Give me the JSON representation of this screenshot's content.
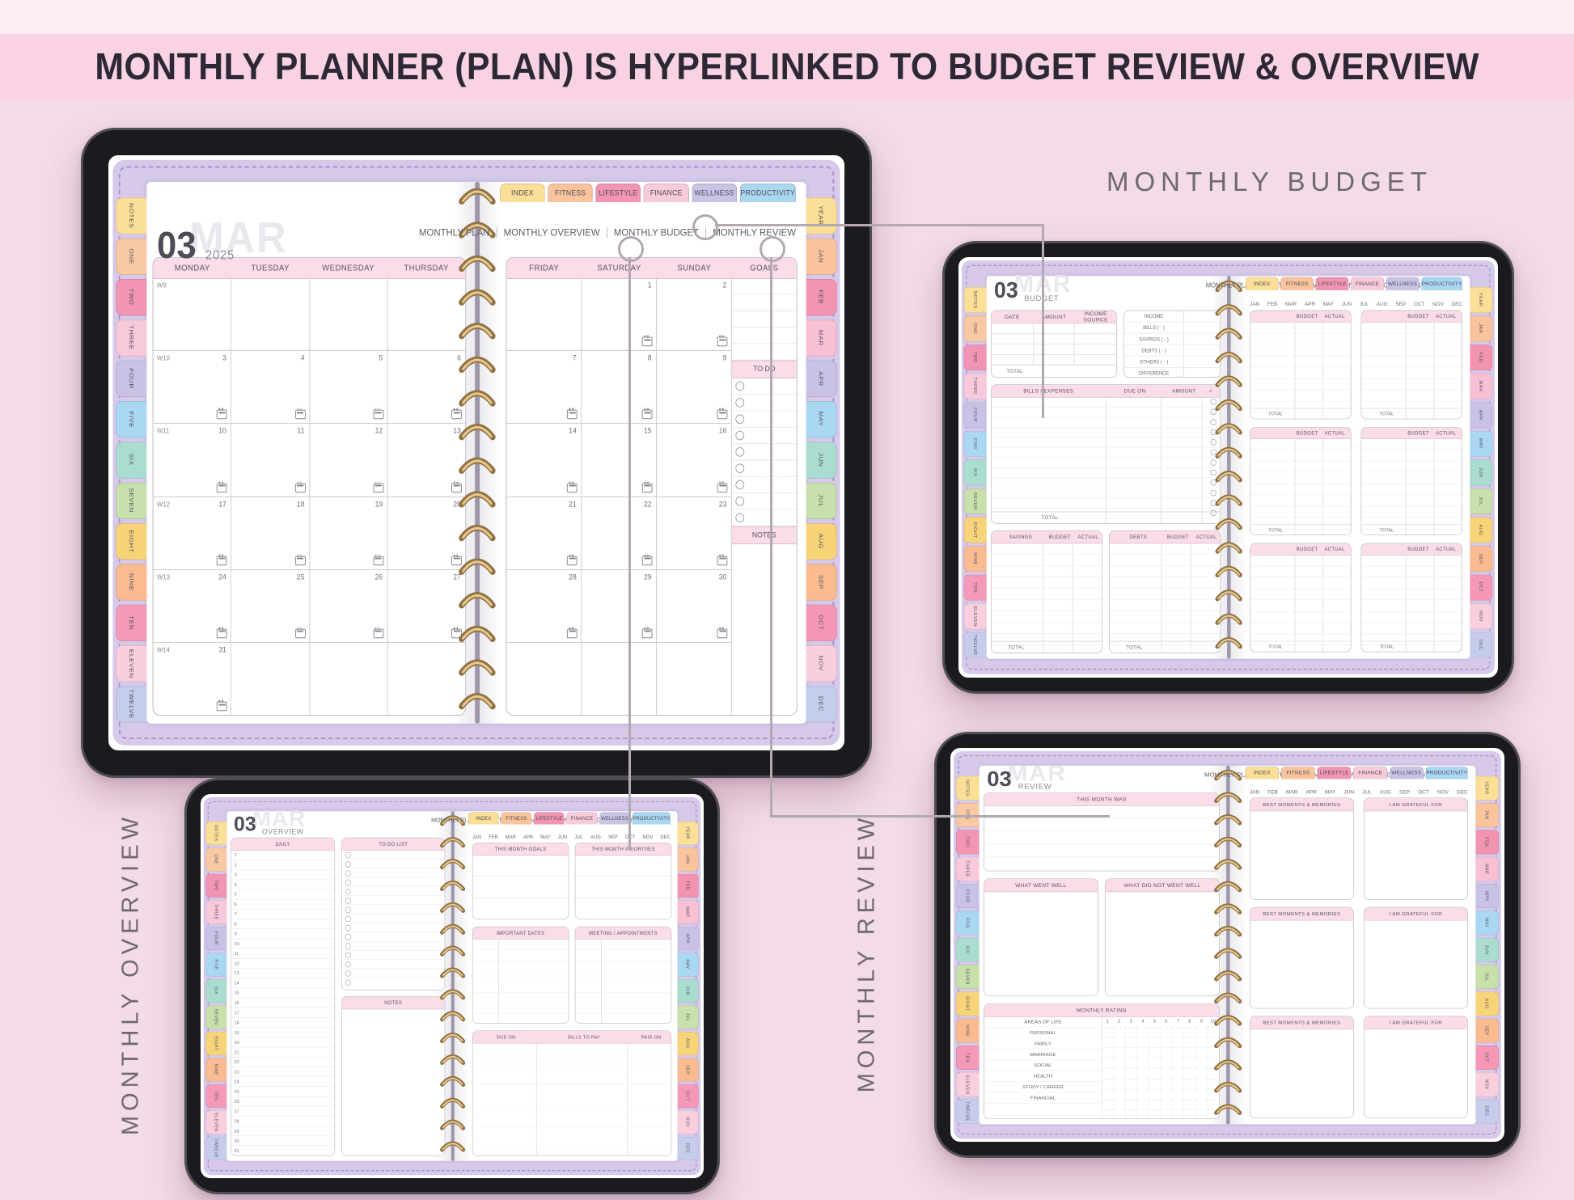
{
  "header": {
    "banner": "MONTHLY PLANNER (PLAN) IS HYPERLINKED TO BUDGET REVIEW & OVERVIEW"
  },
  "annotations": {
    "budget_label": "MONTHLY BUDGET",
    "overview_label": "MONTHLY OVERVIEW",
    "review_label": "MONTHLY REVIEW"
  },
  "chrome": {
    "top_tabs": [
      {
        "label": "INDEX",
        "color": "#fbdf96"
      },
      {
        "label": "FITNESS",
        "color": "#f9c49b"
      },
      {
        "label": "LIFESTYLE",
        "color": "#f294b4"
      },
      {
        "label": "FINANCE",
        "color": "#f8cbdb"
      },
      {
        "label": "WELLNESS",
        "color": "#c9c4e6"
      },
      {
        "label": "PRODUCTIVITY",
        "color": "#a9d7f2"
      }
    ],
    "side_tabs": [
      {
        "label": "NOTES",
        "color": "#fbdf96"
      },
      {
        "label": "ONE",
        "color": "#f9c9a4"
      },
      {
        "label": "TWO",
        "color": "#f294b4"
      },
      {
        "label": "THREE",
        "color": "#f8c9da"
      },
      {
        "label": "FOUR",
        "color": "#c9c2e5"
      },
      {
        "label": "FIVE",
        "color": "#aad7f2"
      },
      {
        "label": "SIX",
        "color": "#abdcd0"
      },
      {
        "label": "SEVEN",
        "color": "#c8e0ab"
      },
      {
        "label": "EIGHT",
        "color": "#f8d478"
      },
      {
        "label": "NINE",
        "color": "#f9bb8f"
      },
      {
        "label": "TEN",
        "color": "#f49ab8"
      },
      {
        "label": "ELEVEN",
        "color": "#f9cfdd"
      },
      {
        "label": "TWELVE",
        "color": "#c5cdea"
      }
    ],
    "month_tabs": [
      {
        "label": "YEAR",
        "color": "#fbdf96"
      },
      {
        "label": "JAN",
        "color": "#f9c49b"
      },
      {
        "label": "FEB",
        "color": "#f294b0"
      },
      {
        "label": "MAR",
        "color": "#f8c0d4"
      },
      {
        "label": "APR",
        "color": "#c9c2e5"
      },
      {
        "label": "MAY",
        "color": "#aad7f2"
      },
      {
        "label": "JUN",
        "color": "#abdcd0"
      },
      {
        "label": "JUL",
        "color": "#c8e0ab"
      },
      {
        "label": "AUG",
        "color": "#f8d478"
      },
      {
        "label": "SEP",
        "color": "#f9bb8f"
      },
      {
        "label": "OCT",
        "color": "#f498b6"
      },
      {
        "label": "NOV",
        "color": "#f9cfdd"
      },
      {
        "label": "DEC",
        "color": "#c5cdea"
      }
    ],
    "nav": [
      "MONTHLY PLAN",
      "MONTHLY OVERVIEW",
      "MONTHLY BUDGET",
      "MONTHLY REVIEW"
    ],
    "months": [
      "JAN",
      "FEB",
      "MAR",
      "APR",
      "MAY",
      "JUN",
      "JUL",
      "AUG",
      "SEP",
      "OCT",
      "NOV",
      "DEC"
    ]
  },
  "plan": {
    "month": "03",
    "subtitle": "2025",
    "watermark": "MAR",
    "day_headers_left": [
      "MONDAY",
      "TUESDAY",
      "WEDNESDAY",
      "THURSDAY"
    ],
    "day_headers_right": [
      "FRIDAY",
      "SATURDAY",
      "SUNDAY"
    ],
    "goals_label": "GOALS",
    "todo_label": "TO DO",
    "notes_label": "NOTES",
    "weeks": [
      {
        "label": "W9",
        "dates": [
          "",
          "",
          "",
          "",
          "",
          "1",
          "2"
        ]
      },
      {
        "label": "W10",
        "dates": [
          "3",
          "4",
          "5",
          "6",
          "7",
          "8",
          "9"
        ]
      },
      {
        "label": "W11",
        "dates": [
          "10",
          "11",
          "12",
          "13",
          "14",
          "15",
          "16"
        ]
      },
      {
        "label": "W12",
        "dates": [
          "17",
          "18",
          "19",
          "20",
          "21",
          "22",
          "23"
        ]
      },
      {
        "label": "W13",
        "dates": [
          "24",
          "25",
          "26",
          "27",
          "28",
          "29",
          "30"
        ]
      },
      {
        "label": "W14",
        "dates": [
          "31",
          "",
          "",
          "",
          "",
          "",
          ""
        ]
      }
    ]
  },
  "budget": {
    "month": "03",
    "subtitle": "BUDGET",
    "watermark": "MAR",
    "income_headers": [
      "DATE",
      "AMOUNT",
      "INCOME SOURCE"
    ],
    "summary_rows": [
      "INCOME",
      "BILLS ( - )",
      "SAVINGS ( - )",
      "DEBTS ( - )",
      "OTHERS ( - )",
      "DIFFERENCE"
    ],
    "bills_headers": {
      "name": "BILLS / EXPENSES",
      "due": "DUE ON",
      "amount": "AMOUNT",
      "check": "✓"
    },
    "savings_label": "SAVINGS",
    "debts_label": "DEBTS",
    "budget_label": "BUDGET",
    "actual_label": "ACTUAL",
    "total_label": "TOTAL"
  },
  "overview": {
    "month": "03",
    "subtitle": "OVERVIEW",
    "watermark": "MAR",
    "daily_label": "DAILY",
    "todo_label": "TO DO LIST",
    "notes_label": "NOTES",
    "daily_numbers": [
      "1",
      "2",
      "3",
      "4",
      "5",
      "6",
      "7",
      "8",
      "9",
      "10",
      "11",
      "12",
      "13",
      "14",
      "15",
      "16",
      "17",
      "18",
      "19",
      "20",
      "21",
      "22",
      "23",
      "24",
      "25",
      "26",
      "27",
      "28",
      "29",
      "30",
      "31"
    ],
    "goals_label": "THIS MONTH GOALS",
    "priorities_label": "THIS MONTH PRIORITIES",
    "dates_label": "IMPORTANT DATES",
    "meetings_label": "MEETING / APPOINTMENTS",
    "bills_headers": {
      "due": "DUE ON",
      "bills": "BILLS TO PAY",
      "paid": "PAID ON"
    }
  },
  "review": {
    "month": "03",
    "subtitle": "REVIEW",
    "watermark": "MAR",
    "month_was_label": "THIS MONTH WAS",
    "went_well_label": "WHAT WENT WELL",
    "not_well_label": "WHAT DID NOT WENT WELL",
    "rating_label": "MONTHLY RATING",
    "areas_label": "AREAS OF LIFE",
    "rating_scale": [
      "1",
      "2",
      "3",
      "4",
      "5",
      "6",
      "7",
      "8",
      "9",
      "10"
    ],
    "rating_rows": [
      "PERSONAL",
      "FAMILY",
      "MARRIAGE",
      "SOCIAL",
      "HEALTH",
      "STUDY / CAREER",
      "FINANCIAL"
    ],
    "moments_label": "BEST MOMENTS & MEMORIES",
    "grateful_label": "I AM GRATEFUL FOR"
  }
}
